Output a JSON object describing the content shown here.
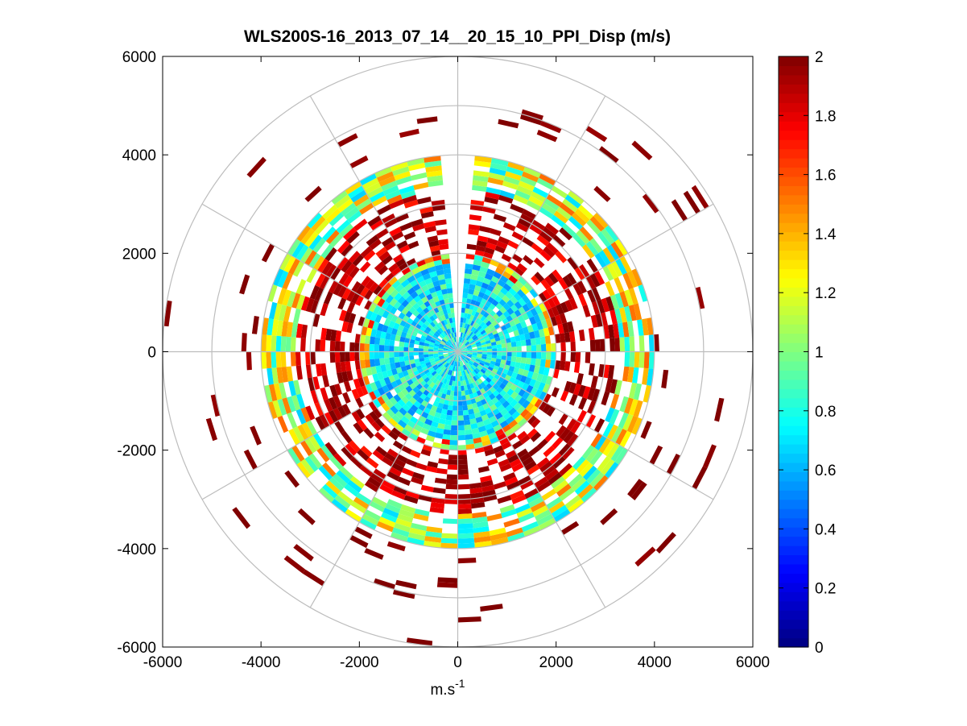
{
  "chart_data": {
    "type": "heatmap",
    "subtype": "polar-ppi",
    "title": "WLS200S-16_2013_07_14__20_15_10_PPI_Disp (m/s)",
    "xlabel_base": "m.s",
    "xlabel_sup": "-1",
    "ylabel": "",
    "xlim": [
      -6000,
      6000
    ],
    "ylim": [
      -6000,
      6000
    ],
    "xticks": [
      -6000,
      -4000,
      -2000,
      0,
      2000,
      4000,
      6000
    ],
    "yticks": [
      6000,
      4000,
      2000,
      0,
      -2000,
      -4000,
      -6000
    ],
    "xtick_labels": [
      "-6000",
      "-4000",
      "-2000",
      "0",
      "2000",
      "4000",
      "6000"
    ],
    "ytick_labels": [
      "6000",
      "4000",
      "2000",
      "0",
      "-2000",
      "-4000",
      "-6000"
    ],
    "polar_rings": [
      1000,
      2000,
      3000,
      4000,
      5000,
      6000
    ],
    "polar_spokes_deg": [
      0,
      30,
      60,
      90,
      120,
      150,
      180,
      210,
      240,
      270,
      300,
      330
    ],
    "blank_sector_deg": [
      86,
      95
    ],
    "colorbar": {
      "min": 0,
      "max": 2,
      "ticks": [
        0,
        0.2,
        0.4,
        0.6,
        0.8,
        1,
        1.2,
        1.4,
        1.6,
        1.8,
        2
      ],
      "tick_labels": [
        "0",
        "0.2",
        "0.4",
        "0.6",
        "0.8",
        "1",
        "1.2",
        "1.4",
        "1.6",
        "1.8",
        "2"
      ],
      "colormap": "jet"
    },
    "radial_profile": [
      {
        "r_min": 0,
        "r_max": 1800,
        "mean_value": 0.75,
        "spread": 0.25,
        "coverage": 0.98
      },
      {
        "r_min": 1800,
        "r_max": 2000,
        "mean_value": 1.2,
        "spread": 0.6,
        "coverage": 0.85
      },
      {
        "r_min": 2000,
        "r_max": 3300,
        "mean_value": 1.9,
        "spread": 0.2,
        "coverage": 0.55
      },
      {
        "r_min": 3300,
        "r_max": 4000,
        "mean_value": 1.1,
        "spread": 0.45,
        "coverage": 0.8
      },
      {
        "r_min": 4000,
        "r_max": 6000,
        "mean_value": 2.0,
        "spread": 0.05,
        "coverage": 0.05
      }
    ]
  }
}
